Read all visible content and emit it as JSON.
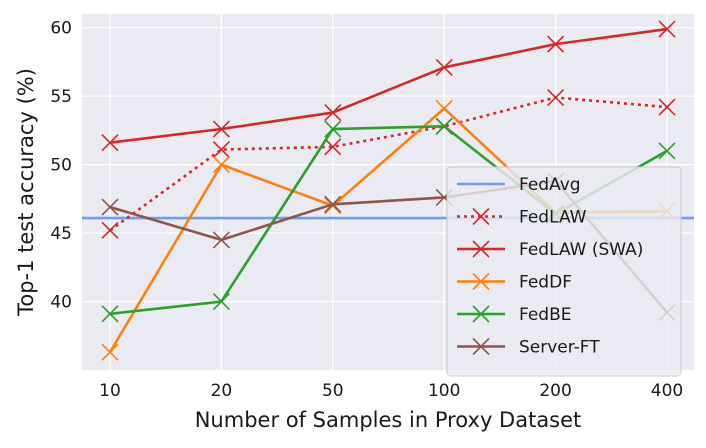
{
  "chart_data": {
    "type": "line",
    "title": "",
    "xlabel": "Number of Samples in Proxy Dataset",
    "ylabel": "Top-1 test accuracy (%)",
    "categories": [
      "10",
      "20",
      "50",
      "100",
      "200",
      "400"
    ],
    "ylim": [
      35,
      61
    ],
    "yticks": [
      40,
      45,
      50,
      55,
      60
    ],
    "grid": true,
    "legend_position": "lower-right",
    "series": [
      {
        "name": "FedAvg",
        "color": "#6d9eeb",
        "style": "solid",
        "marker": "none",
        "values": [
          46.1,
          46.1,
          46.1,
          46.1,
          46.1,
          46.1
        ]
      },
      {
        "name": "FedLAW",
        "color": "#d62728",
        "style": "dotted",
        "marker": "x",
        "values": [
          45.2,
          51.1,
          51.3,
          52.8,
          54.9,
          54.2
        ]
      },
      {
        "name": "FedLAW (SWA)",
        "color": "#d62728",
        "style": "solid",
        "marker": "x",
        "values": [
          51.6,
          52.6,
          53.8,
          57.1,
          58.8,
          59.9
        ]
      },
      {
        "name": "FedDF",
        "color": "#ff7f0e",
        "style": "solid",
        "marker": "x",
        "values": [
          36.3,
          50.0,
          47.0,
          54.1,
          46.5,
          46.6
        ]
      },
      {
        "name": "FedBE",
        "color": "#2ca02c",
        "style": "solid",
        "marker": "x",
        "values": [
          39.1,
          40.0,
          52.6,
          52.8,
          46.4,
          51.0
        ]
      },
      {
        "name": "Server-FT",
        "color": "#8c564b",
        "style": "solid",
        "marker": "x",
        "values": [
          46.9,
          44.5,
          47.1,
          47.6,
          48.8,
          39.2
        ]
      }
    ]
  }
}
